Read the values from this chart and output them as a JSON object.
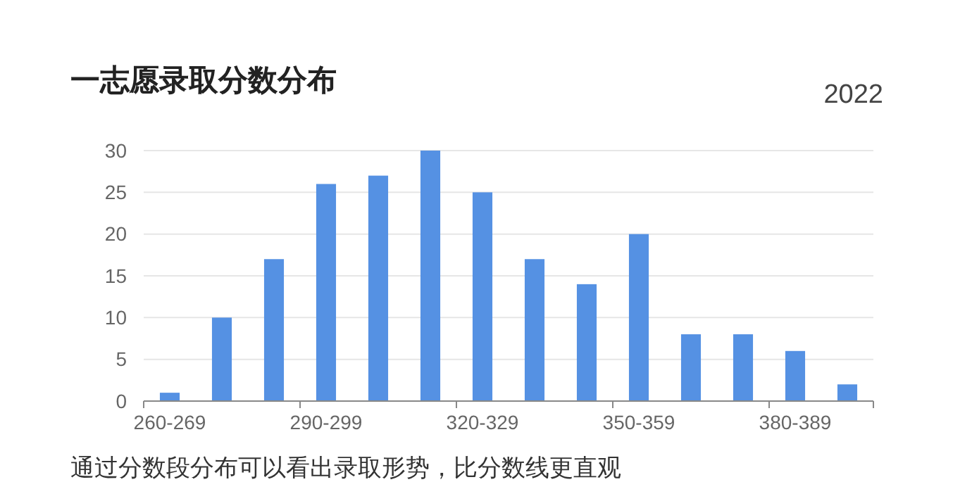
{
  "chart_data": {
    "type": "bar",
    "title": "一志愿录取分数分布",
    "subtitle": "2022",
    "categories": [
      "260-269",
      null,
      null,
      "290-299",
      null,
      null,
      "320-329",
      null,
      null,
      "350-359",
      null,
      null,
      "380-389",
      null
    ],
    "values": [
      1,
      10,
      17,
      26,
      27,
      30,
      25,
      17,
      14,
      20,
      8,
      8,
      6,
      2
    ],
    "color": "#5591e3",
    "ylim": [
      0,
      30
    ],
    "yticks": [
      0,
      5,
      10,
      15,
      20,
      25,
      30
    ],
    "grid": "y",
    "annotations": [
      "通过分数段分布可以看出录取形势，比分数线更直观"
    ]
  }
}
